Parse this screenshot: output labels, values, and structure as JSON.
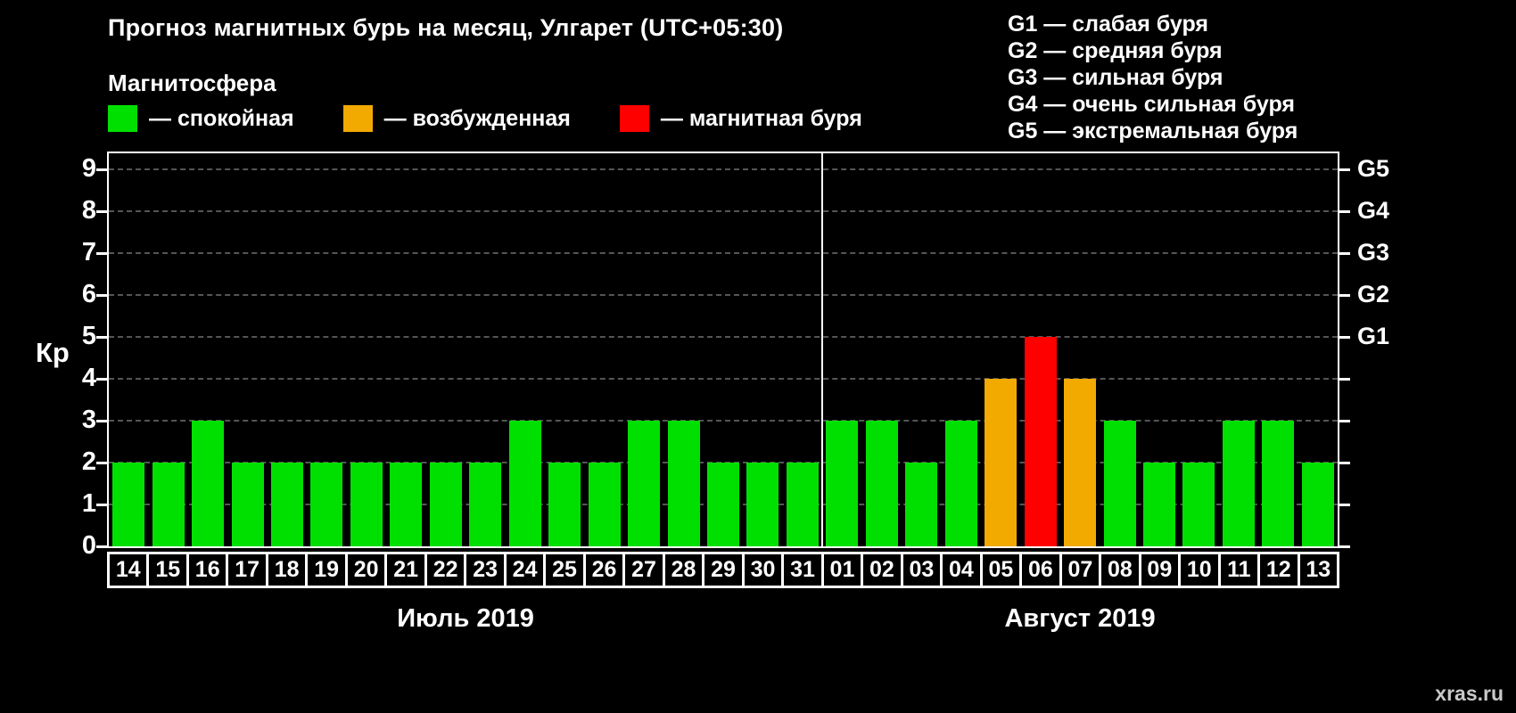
{
  "title": "Прогноз магнитных бурь на месяц, Улгарет (UTC+05:30)",
  "legend": {
    "heading": "Магнитосфера",
    "items": [
      {
        "status": "quiet",
        "label": "— спокойная",
        "color": "#00e000"
      },
      {
        "status": "excited",
        "label": "— возбужденная",
        "color": "#f2a900"
      },
      {
        "status": "storm",
        "label": "— магнитная буря",
        "color": "#ff0000"
      }
    ]
  },
  "g_legend": [
    "G1 — слабая буря",
    "G2 — средняя буря",
    "G3 — сильная буря",
    "G4 — очень сильная буря",
    "G5 — экстремальная буря"
  ],
  "chart_data": {
    "type": "bar",
    "title": "Прогноз магнитных бурь на месяц, Улгарет (UTC+05:30)",
    "ylabel": "Кр",
    "ylim": [
      0,
      9
    ],
    "yticks": [
      0,
      1,
      2,
      3,
      4,
      5,
      6,
      7,
      8,
      9
    ],
    "grid": "dashed horizontal gray lines at each Kp integer",
    "legend_position": "top",
    "right_axis_ticks": [
      {
        "label": "G5",
        "value": 9
      },
      {
        "label": "G4",
        "value": 8
      },
      {
        "label": "G3",
        "value": 7
      },
      {
        "label": "G2",
        "value": 6
      },
      {
        "label": "G1",
        "value": 5
      }
    ],
    "thresholds": {
      "excited": 4,
      "storm_min": 5
    },
    "months": [
      {
        "label": "Июль 2019",
        "days": [
          "14",
          "15",
          "16",
          "17",
          "18",
          "19",
          "20",
          "21",
          "22",
          "23",
          "24",
          "25",
          "26",
          "27",
          "28",
          "29",
          "30",
          "31"
        ],
        "values": [
          2,
          2,
          3,
          2,
          2,
          2,
          2,
          2,
          2,
          2,
          3,
          2,
          2,
          3,
          3,
          2,
          2,
          2
        ]
      },
      {
        "label": "Август 2019",
        "days": [
          "01",
          "02",
          "03",
          "04",
          "05",
          "06",
          "07",
          "08",
          "09",
          "10",
          "11",
          "12",
          "13"
        ],
        "values": [
          3,
          3,
          2,
          3,
          4,
          5,
          4,
          3,
          2,
          2,
          3,
          3,
          2
        ]
      }
    ]
  },
  "watermark": "xras.ru"
}
